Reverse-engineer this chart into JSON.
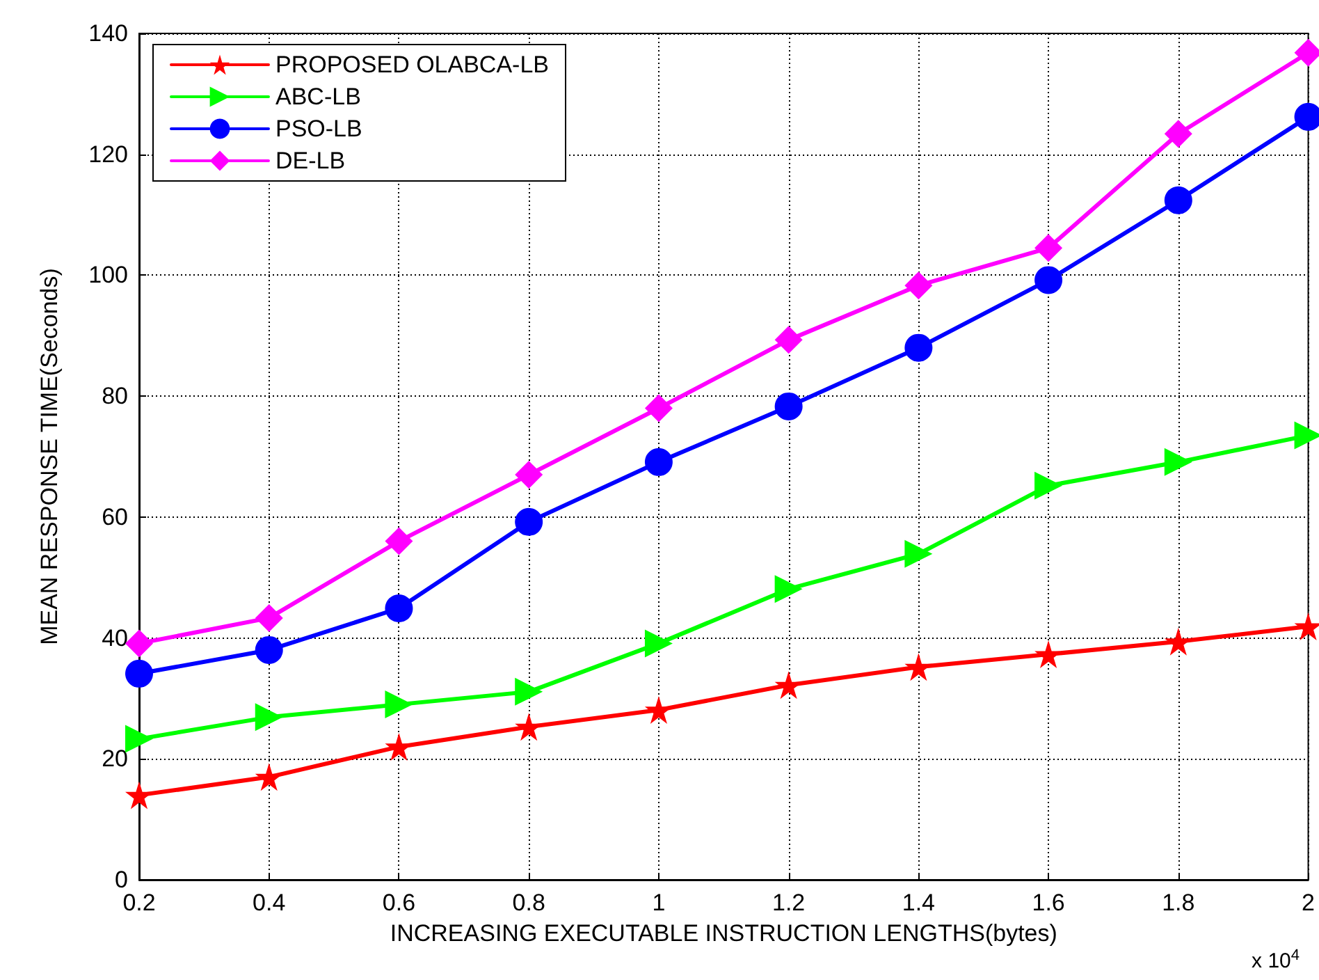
{
  "chart_data": {
    "type": "line",
    "xlabel": "INCREASING EXECUTABLE INSTRUCTION LENGTHS(bytes)",
    "ylabel": "MEAN RESPONSE TIME(Seconds)",
    "annotations": [
      "x 10$^{4}$"
    ],
    "x": [
      0.2,
      0.4,
      0.6,
      0.8,
      1,
      1.2,
      1.4,
      1.6,
      1.8,
      2
    ],
    "xlim": [
      0.2,
      2
    ],
    "xticks": [
      0.2,
      0.4,
      0.6,
      0.8,
      1,
      1.2,
      1.4,
      1.6,
      1.8,
      2
    ],
    "ylim": [
      0,
      140
    ],
    "yticks": [
      0,
      20,
      40,
      60,
      80,
      100,
      120,
      140
    ],
    "grid": true,
    "legend": "top left",
    "line_style": "solid",
    "series": [
      {
        "name": "PROPOSED OLABCA-LB",
        "color": "#ff0000",
        "marker": "star",
        "values": [
          14,
          17,
          22,
          25.3,
          28.1,
          32.2,
          35.2,
          37.3,
          39.4,
          41.9
        ]
      },
      {
        "name": "ABC-LB",
        "color": "#00ff00",
        "marker": "triangle",
        "values": [
          23.3,
          26.9,
          29,
          31.1,
          39.1,
          48.1,
          53.9,
          65.2,
          69.1,
          73.5
        ]
      },
      {
        "name": "PSO-LB",
        "color": "#0000ff",
        "marker": "circle",
        "values": [
          34.1,
          38,
          44.9,
          59.2,
          69.1,
          78.3,
          88,
          99.2,
          112.4,
          126.2
        ]
      },
      {
        "name": "DE-LB",
        "color": "#ff00ff",
        "marker": "diamond",
        "values": [
          39.1,
          43.3,
          56,
          67,
          78,
          89.3,
          98.3,
          104.5,
          123.4,
          136.8
        ]
      }
    ]
  }
}
